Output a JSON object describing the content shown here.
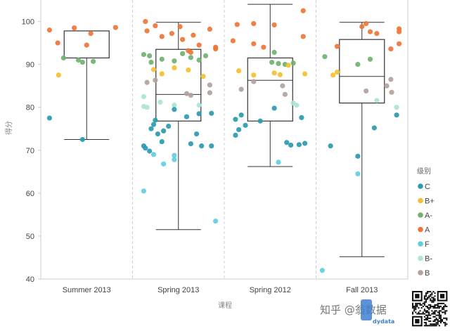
{
  "chart_data": {
    "type": "box-scatter",
    "xlabel": "课程",
    "ylabel": "得分",
    "ylim": [
      40,
      105
    ],
    "yticks": [
      40,
      50,
      60,
      70,
      80,
      90,
      100
    ],
    "categories": [
      "Summer 2013",
      "Spring 2013",
      "Spring 2012",
      "Fall 2013"
    ],
    "legend": {
      "title": "级别",
      "placement": "right",
      "items": [
        {
          "name": "C",
          "color": "#2b9bb0"
        },
        {
          "name": "B+",
          "color": "#f2c12e"
        },
        {
          "name": "A-",
          "color": "#6fb36f"
        },
        {
          "name": "A",
          "color": "#ee7536"
        },
        {
          "name": "F",
          "color": "#63cde0"
        },
        {
          "name": "B-",
          "color": "#aee3d9"
        },
        {
          "name": "B",
          "color": "#b3a29d"
        }
      ]
    },
    "boxes": [
      {
        "category": "Summer 2013",
        "min": 72.5,
        "q1": 91.5,
        "median": 97.8,
        "q3": 97.8,
        "max": 97.8
      },
      {
        "category": "Spring 2013",
        "min": 51.5,
        "q1": 76.8,
        "median": 83.0,
        "q3": 93.5,
        "max": 99.8
      },
      {
        "category": "Spring 2012",
        "min": 66.2,
        "q1": 76.8,
        "median": 86.3,
        "q3": 91.5,
        "max": 104.0
      },
      {
        "category": "Fall 2013",
        "min": 45.2,
        "q1": 81.0,
        "median": 87.2,
        "q3": 95.8,
        "max": 99.8
      }
    ],
    "points": [
      {
        "category": "Summer 2013",
        "offset": -0.45,
        "grade": "A",
        "value": 98.0
      },
      {
        "category": "Summer 2013",
        "offset": -0.35,
        "grade": "A",
        "value": 95.0
      },
      {
        "category": "Summer 2013",
        "offset": -0.15,
        "grade": "A",
        "value": 98.5
      },
      {
        "category": "Summer 2013",
        "offset": 0.05,
        "grade": "A",
        "value": 97.2
      },
      {
        "category": "Summer 2013",
        "offset": 0.0,
        "grade": "A",
        "value": 94.5
      },
      {
        "category": "Summer 2013",
        "offset": 0.35,
        "grade": "A",
        "value": 98.6
      },
      {
        "category": "Summer 2013",
        "offset": -0.28,
        "grade": "A-",
        "value": 91.5
      },
      {
        "category": "Summer 2013",
        "offset": -0.1,
        "grade": "A-",
        "value": 91.0
      },
      {
        "category": "Summer 2013",
        "offset": -0.05,
        "grade": "A-",
        "value": 90.5
      },
      {
        "category": "Summer 2013",
        "offset": 0.08,
        "grade": "A-",
        "value": 90.7
      },
      {
        "category": "Summer 2013",
        "offset": -0.34,
        "grade": "B+",
        "value": 87.5
      },
      {
        "category": "Summer 2013",
        "offset": -0.45,
        "grade": "C",
        "value": 77.5
      },
      {
        "category": "Summer 2013",
        "offset": -0.05,
        "grade": "C",
        "value": 72.5
      },
      {
        "category": "Spring 2013",
        "offset": -0.4,
        "grade": "A",
        "value": 100.0
      },
      {
        "category": "Spring 2013",
        "offset": -0.38,
        "grade": "A",
        "value": 97.8
      },
      {
        "category": "Spring 2013",
        "offset": -0.28,
        "grade": "A",
        "value": 99.0
      },
      {
        "category": "Spring 2013",
        "offset": -0.2,
        "grade": "A",
        "value": 96.5
      },
      {
        "category": "Spring 2013",
        "offset": -0.08,
        "grade": "A",
        "value": 97.2
      },
      {
        "category": "Spring 2013",
        "offset": 0.02,
        "grade": "A",
        "value": 98.8
      },
      {
        "category": "Spring 2013",
        "offset": 0.05,
        "grade": "A",
        "value": 95.8
      },
      {
        "category": "Spring 2013",
        "offset": 0.12,
        "grade": "A",
        "value": 93.2
      },
      {
        "category": "Spring 2013",
        "offset": 0.18,
        "grade": "A",
        "value": 96.8
      },
      {
        "category": "Spring 2013",
        "offset": 0.25,
        "grade": "A",
        "value": 94.5
      },
      {
        "category": "Spring 2013",
        "offset": 0.38,
        "grade": "A",
        "value": 98.2
      },
      {
        "category": "Spring 2013",
        "offset": 0.45,
        "grade": "A",
        "value": 94.0
      },
      {
        "category": "Spring 2013",
        "offset": 0.15,
        "grade": "A",
        "value": 92.8
      },
      {
        "category": "Spring 2013",
        "offset": 0.45,
        "grade": "A",
        "value": 93.6
      },
      {
        "category": "Spring 2013",
        "offset": -0.42,
        "grade": "A-",
        "value": 92.3
      },
      {
        "category": "Spring 2013",
        "offset": -0.35,
        "grade": "A-",
        "value": 92.0
      },
      {
        "category": "Spring 2013",
        "offset": -0.33,
        "grade": "A-",
        "value": 90.5
      },
      {
        "category": "Spring 2013",
        "offset": -0.2,
        "grade": "A-",
        "value": 91.2
      },
      {
        "category": "Spring 2013",
        "offset": -0.05,
        "grade": "A-",
        "value": 90.8
      },
      {
        "category": "Spring 2013",
        "offset": 0.05,
        "grade": "A-",
        "value": 92.5
      },
      {
        "category": "Spring 2013",
        "offset": 0.15,
        "grade": "A-",
        "value": 91.6
      },
      {
        "category": "Spring 2013",
        "offset": 0.25,
        "grade": "A-",
        "value": 91.0
      },
      {
        "category": "Spring 2013",
        "offset": 0.33,
        "grade": "A-",
        "value": 92.0
      },
      {
        "category": "Spring 2013",
        "offset": -0.3,
        "grade": "B+",
        "value": 88.8
      },
      {
        "category": "Spring 2013",
        "offset": -0.2,
        "grade": "B+",
        "value": 87.8
      },
      {
        "category": "Spring 2013",
        "offset": -0.05,
        "grade": "B+",
        "value": 89.2
      },
      {
        "category": "Spring 2013",
        "offset": 0.12,
        "grade": "B+",
        "value": 88.7
      },
      {
        "category": "Spring 2013",
        "offset": 0.3,
        "grade": "B+",
        "value": 87.2
      },
      {
        "category": "Spring 2013",
        "offset": -0.38,
        "grade": "B",
        "value": 85.8
      },
      {
        "category": "Spring 2013",
        "offset": -0.28,
        "grade": "B",
        "value": 86.3
      },
      {
        "category": "Spring 2013",
        "offset": 0.1,
        "grade": "B",
        "value": 83.2
      },
      {
        "category": "Spring 2013",
        "offset": 0.15,
        "grade": "B",
        "value": 82.8
      },
      {
        "category": "Spring 2013",
        "offset": 0.38,
        "grade": "B",
        "value": 85.2
      },
      {
        "category": "Spring 2013",
        "offset": 0.38,
        "grade": "B",
        "value": 83.4
      },
      {
        "category": "Spring 2013",
        "offset": -0.42,
        "grade": "B-",
        "value": 82.5
      },
      {
        "category": "Spring 2013",
        "offset": -0.42,
        "grade": "B-",
        "value": 80.2
      },
      {
        "category": "Spring 2013",
        "offset": -0.38,
        "grade": "B-",
        "value": 80.0
      },
      {
        "category": "Spring 2013",
        "offset": -0.22,
        "grade": "B-",
        "value": 81.2
      },
      {
        "category": "Spring 2013",
        "offset": -0.05,
        "grade": "B-",
        "value": 80.5
      },
      {
        "category": "Spring 2013",
        "offset": 0.25,
        "grade": "B-",
        "value": 80.5
      },
      {
        "category": "Spring 2013",
        "offset": -0.28,
        "grade": "C",
        "value": 77.0
      },
      {
        "category": "Spring 2013",
        "offset": -0.3,
        "grade": "C",
        "value": 76.0
      },
      {
        "category": "Spring 2013",
        "offset": -0.33,
        "grade": "C",
        "value": 75.0
      },
      {
        "category": "Spring 2013",
        "offset": -0.25,
        "grade": "C",
        "value": 73.8
      },
      {
        "category": "Spring 2013",
        "offset": -0.18,
        "grade": "C",
        "value": 74.5
      },
      {
        "category": "Spring 2013",
        "offset": -0.12,
        "grade": "C",
        "value": 75.6
      },
      {
        "category": "Spring 2013",
        "offset": -0.2,
        "grade": "C",
        "value": 72.0
      },
      {
        "category": "Spring 2013",
        "offset": -0.42,
        "grade": "C",
        "value": 71.0
      },
      {
        "category": "Spring 2013",
        "offset": -0.4,
        "grade": "C",
        "value": 70.5
      },
      {
        "category": "Spring 2013",
        "offset": -0.35,
        "grade": "C",
        "value": 69.8
      },
      {
        "category": "Spring 2013",
        "offset": -0.05,
        "grade": "C",
        "value": 79.5
      },
      {
        "category": "Spring 2013",
        "offset": 0.1,
        "grade": "C",
        "value": 77.8
      },
      {
        "category": "Spring 2013",
        "offset": 0.25,
        "grade": "C",
        "value": 78.5
      },
      {
        "category": "Spring 2013",
        "offset": 0.22,
        "grade": "C",
        "value": 73.8
      },
      {
        "category": "Spring 2013",
        "offset": 0.28,
        "grade": "C",
        "value": 71.0
      },
      {
        "category": "Spring 2013",
        "offset": 0.15,
        "grade": "C",
        "value": 71.5
      },
      {
        "category": "Spring 2013",
        "offset": 0.4,
        "grade": "C",
        "value": 71.0
      },
      {
        "category": "Spring 2013",
        "offset": 0.4,
        "grade": "C",
        "value": 78.6
      },
      {
        "category": "Spring 2013",
        "offset": -0.3,
        "grade": "F",
        "value": 69.0
      },
      {
        "category": "Spring 2013",
        "offset": -0.18,
        "grade": "F",
        "value": 66.8
      },
      {
        "category": "Spring 2013",
        "offset": -0.05,
        "grade": "F",
        "value": 67.8
      },
      {
        "category": "Spring 2013",
        "offset": -0.05,
        "grade": "F",
        "value": 68.8
      },
      {
        "category": "Spring 2013",
        "offset": -0.42,
        "grade": "F",
        "value": 60.5
      },
      {
        "category": "Spring 2013",
        "offset": 0.45,
        "grade": "F",
        "value": 53.5
      },
      {
        "category": "Spring 2012",
        "offset": -0.45,
        "grade": "A",
        "value": 95.5
      },
      {
        "category": "Spring 2012",
        "offset": -0.4,
        "grade": "A",
        "value": 99.3
      },
      {
        "category": "Spring 2012",
        "offset": -0.2,
        "grade": "A",
        "value": 99.5
      },
      {
        "category": "Spring 2012",
        "offset": -0.2,
        "grade": "A",
        "value": 94.8
      },
      {
        "category": "Spring 2012",
        "offset": -0.08,
        "grade": "A",
        "value": 94.0
      },
      {
        "category": "Spring 2012",
        "offset": 0.05,
        "grade": "A",
        "value": 99.2
      },
      {
        "category": "Spring 2012",
        "offset": 0.4,
        "grade": "A",
        "value": 102.5
      },
      {
        "category": "Spring 2012",
        "offset": 0.4,
        "grade": "A",
        "value": 96.5
      },
      {
        "category": "Spring 2012",
        "offset": 0.05,
        "grade": "A-",
        "value": 92.8
      },
      {
        "category": "Spring 2012",
        "offset": 0.02,
        "grade": "A-",
        "value": 90.5
      },
      {
        "category": "Spring 2012",
        "offset": 0.1,
        "grade": "A-",
        "value": 90.2
      },
      {
        "category": "Spring 2012",
        "offset": 0.18,
        "grade": "A-",
        "value": 90.0
      },
      {
        "category": "Spring 2012",
        "offset": 0.28,
        "grade": "A-",
        "value": 90.3
      },
      {
        "category": "Spring 2012",
        "offset": -0.38,
        "grade": "B+",
        "value": 88.5
      },
      {
        "category": "Spring 2012",
        "offset": -0.2,
        "grade": "B+",
        "value": 87.5
      },
      {
        "category": "Spring 2012",
        "offset": 0.05,
        "grade": "B+",
        "value": 88.0
      },
      {
        "category": "Spring 2012",
        "offset": 0.12,
        "grade": "B+",
        "value": 87.6
      },
      {
        "category": "Spring 2012",
        "offset": 0.22,
        "grade": "B+",
        "value": 89.8
      },
      {
        "category": "Spring 2012",
        "offset": 0.42,
        "grade": "B+",
        "value": 87.8
      },
      {
        "category": "Spring 2012",
        "offset": -0.35,
        "grade": "B",
        "value": 84.2
      },
      {
        "category": "Spring 2012",
        "offset": -0.2,
        "grade": "B",
        "value": 86.0
      },
      {
        "category": "Spring 2012",
        "offset": 0.15,
        "grade": "B",
        "value": 85.0
      },
      {
        "category": "Spring 2012",
        "offset": 0.18,
        "grade": "B",
        "value": 83.0
      },
      {
        "category": "Spring 2012",
        "offset": 0.28,
        "grade": "B-",
        "value": 81.0
      },
      {
        "category": "Spring 2012",
        "offset": 0.32,
        "grade": "B-",
        "value": 80.5
      },
      {
        "category": "Spring 2012",
        "offset": -0.42,
        "grade": "C",
        "value": 77.2
      },
      {
        "category": "Spring 2012",
        "offset": -0.35,
        "grade": "C",
        "value": 78.2
      },
      {
        "category": "Spring 2012",
        "offset": -0.3,
        "grade": "C",
        "value": 75.8
      },
      {
        "category": "Spring 2012",
        "offset": -0.38,
        "grade": "C",
        "value": 74.8
      },
      {
        "category": "Spring 2012",
        "offset": -0.42,
        "grade": "C",
        "value": 73.5
      },
      {
        "category": "Spring 2012",
        "offset": -0.12,
        "grade": "C",
        "value": 76.8
      },
      {
        "category": "Spring 2012",
        "offset": 0.05,
        "grade": "C",
        "value": 79.8
      },
      {
        "category": "Spring 2012",
        "offset": 0.2,
        "grade": "C",
        "value": 71.8
      },
      {
        "category": "Spring 2012",
        "offset": 0.25,
        "grade": "C",
        "value": 71.2
      },
      {
        "category": "Spring 2012",
        "offset": 0.35,
        "grade": "C",
        "value": 71.3
      },
      {
        "category": "Spring 2012",
        "offset": 0.42,
        "grade": "C",
        "value": 71.6
      },
      {
        "category": "Spring 2012",
        "offset": 0.38,
        "grade": "C",
        "value": 77.6
      },
      {
        "category": "Spring 2012",
        "offset": 0.1,
        "grade": "F",
        "value": 67.2
      },
      {
        "category": "Fall 2013",
        "offset": -0.45,
        "grade": "A-",
        "value": 91.8
      },
      {
        "category": "Fall 2013",
        "offset": -0.05,
        "grade": "A-",
        "value": 90.0
      },
      {
        "category": "Fall 2013",
        "offset": 0.1,
        "grade": "A-",
        "value": 91.2
      },
      {
        "category": "Fall 2013",
        "offset": -0.3,
        "grade": "A",
        "value": 94.2
      },
      {
        "category": "Fall 2013",
        "offset": 0.0,
        "grade": "A",
        "value": 98.8
      },
      {
        "category": "Fall 2013",
        "offset": 0.05,
        "grade": "A",
        "value": 99.5
      },
      {
        "category": "Fall 2013",
        "offset": 0.1,
        "grade": "A",
        "value": 97.6
      },
      {
        "category": "Fall 2013",
        "offset": 0.18,
        "grade": "A",
        "value": 97.2
      },
      {
        "category": "Fall 2013",
        "offset": 0.35,
        "grade": "A",
        "value": 93.6
      },
      {
        "category": "Fall 2013",
        "offset": 0.45,
        "grade": "A",
        "value": 98.3
      },
      {
        "category": "Fall 2013",
        "offset": 0.45,
        "grade": "A",
        "value": 97.6
      },
      {
        "category": "Fall 2013",
        "offset": 0.45,
        "grade": "A",
        "value": 94.8
      },
      {
        "category": "Fall 2013",
        "offset": -0.35,
        "grade": "B+",
        "value": 87.5
      },
      {
        "category": "Fall 2013",
        "offset": -0.3,
        "grade": "B+",
        "value": 88.2
      },
      {
        "category": "Fall 2013",
        "offset": 0.05,
        "grade": "B",
        "value": 83.8
      },
      {
        "category": "Fall 2013",
        "offset": 0.35,
        "grade": "B",
        "value": 86.5
      },
      {
        "category": "Fall 2013",
        "offset": 0.3,
        "grade": "B",
        "value": 85.0
      },
      {
        "category": "Fall 2013",
        "offset": 0.36,
        "grade": "B",
        "value": 83.5
      },
      {
        "category": "Fall 2013",
        "offset": 0.18,
        "grade": "B-",
        "value": 81.6
      },
      {
        "category": "Fall 2013",
        "offset": 0.42,
        "grade": "B-",
        "value": 80.0
      },
      {
        "category": "Fall 2013",
        "offset": 0.15,
        "grade": "C",
        "value": 75.2
      },
      {
        "category": "Fall 2013",
        "offset": -0.38,
        "grade": "C",
        "value": 71.0
      },
      {
        "category": "Fall 2013",
        "offset": -0.05,
        "grade": "C",
        "value": 68.6
      },
      {
        "category": "Fall 2013",
        "offset": 0.42,
        "grade": "C",
        "value": 78.2
      },
      {
        "category": "Fall 2013",
        "offset": -0.05,
        "grade": "F",
        "value": 64.5
      },
      {
        "category": "Fall 2013",
        "offset": -0.48,
        "grade": "F",
        "value": 42.0
      }
    ]
  },
  "watermark": {
    "text": "知乎 @翁数据",
    "logo_text": "dydata"
  }
}
